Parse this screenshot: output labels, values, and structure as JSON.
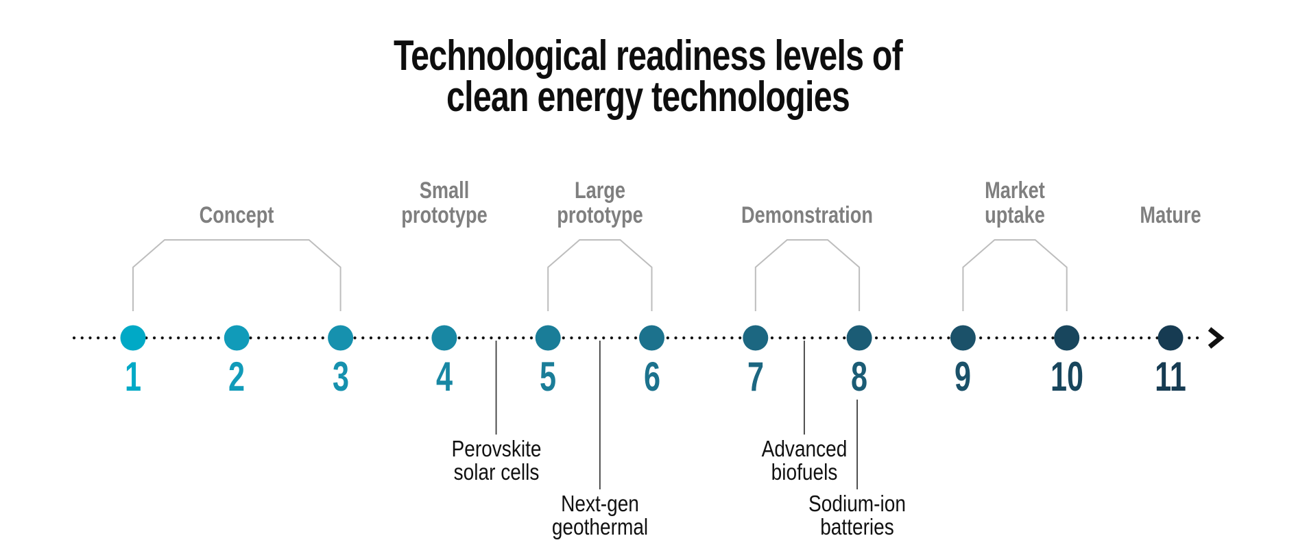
{
  "title": {
    "lines": [
      "Technological readiness levels of",
      "clean energy technologies"
    ]
  },
  "stages": [
    {
      "name": "concept",
      "lines": [
        "Concept"
      ],
      "from": 1,
      "to": 3,
      "bracket": true
    },
    {
      "name": "small-prototype",
      "lines": [
        "Small",
        "prototype"
      ],
      "from": 4,
      "to": 4,
      "bracket": false
    },
    {
      "name": "large-prototype",
      "lines": [
        "Large",
        "prototype"
      ],
      "from": 5,
      "to": 6,
      "bracket": true
    },
    {
      "name": "demonstration",
      "lines": [
        "Demonstration"
      ],
      "from": 7,
      "to": 8,
      "bracket": true
    },
    {
      "name": "market-uptake",
      "lines": [
        "Market",
        "uptake"
      ],
      "from": 9,
      "to": 10,
      "bracket": true
    },
    {
      "name": "mature",
      "lines": [
        "Mature"
      ],
      "from": 11,
      "to": 11,
      "bracket": false
    }
  ],
  "levels": [
    {
      "number": "1",
      "color": "#00a9c6"
    },
    {
      "number": "2",
      "color": "#119bb9"
    },
    {
      "number": "3",
      "color": "#1691ae"
    },
    {
      "number": "4",
      "color": "#1887a3"
    },
    {
      "number": "5",
      "color": "#1a7d98"
    },
    {
      "number": "6",
      "color": "#1c728d"
    },
    {
      "number": "7",
      "color": "#1c6781"
    },
    {
      "number": "8",
      "color": "#1b5c75"
    },
    {
      "number": "9",
      "color": "#1b5169"
    },
    {
      "number": "10",
      "color": "#18465d"
    },
    {
      "number": "11",
      "color": "#163b52"
    }
  ],
  "annotations": [
    {
      "name": "perovskite-solar-cells",
      "lines": [
        "Perovskite",
        "solar cells"
      ],
      "at_level": 4.5,
      "row": 1,
      "start_below_numbers": false
    },
    {
      "name": "next-gen-geothermal",
      "lines": [
        "Next-gen",
        "geothermal"
      ],
      "at_level": 5.5,
      "row": 2,
      "start_below_numbers": false
    },
    {
      "name": "advanced-biofuels",
      "lines": [
        "Advanced",
        "biofuels"
      ],
      "at_level": 7.47,
      "row": 1,
      "start_below_numbers": false
    },
    {
      "name": "sodium-ion-batteries",
      "lines": [
        "Sodium-ion",
        "batteries"
      ],
      "at_level": 7.98,
      "row": 2,
      "start_below_numbers": true
    }
  ],
  "colors": {
    "title_text": "#0e0e0e",
    "stage_label_gray": "#7f7f7f",
    "bracket_gray": "#bdbdbd",
    "leader_line": "#3d3d3d",
    "timeline_dots": "#111111",
    "annotation_text": "#111111"
  }
}
